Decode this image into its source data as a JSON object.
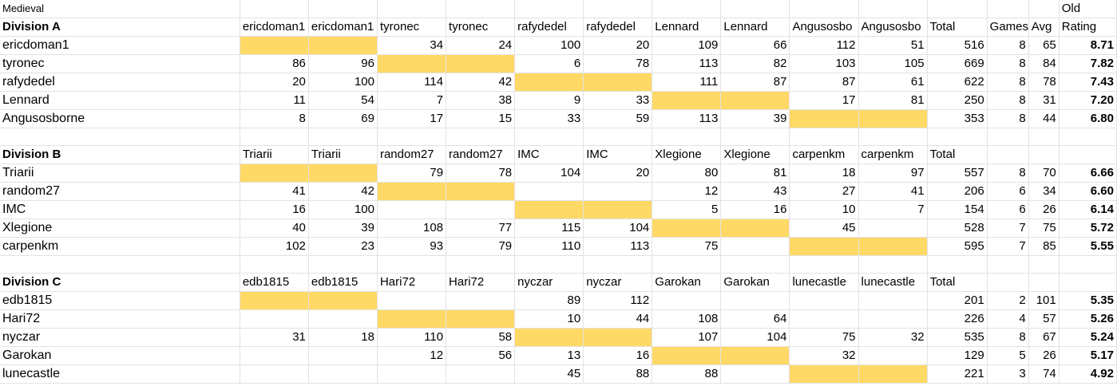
{
  "sheet": {
    "title": "Medieval",
    "old_label": "Old",
    "divisions": [
      {
        "name": "Division A",
        "opponents": [
          "ericdoman1",
          "ericdoman1",
          "tyronec",
          "tyronec",
          "rafydedel",
          "rafydedel",
          "Lennard",
          "Lennard",
          "Angusosbo",
          "Angusosbo"
        ],
        "total_label": "Total",
        "games_label": "Games",
        "avg_label": "Avg",
        "rating_label": "Rating",
        "rows": [
          {
            "name": "ericdoman1",
            "cells": [
              "",
              "",
              "34",
              "24",
              "100",
              "20",
              "109",
              "66",
              "112",
              "51"
            ],
            "total": "516",
            "games": "8",
            "avg": "65",
            "rating": "8.71",
            "hl": [
              0
            ]
          },
          {
            "name": "tyronec",
            "cells": [
              "86",
              "96",
              "",
              "",
              "6",
              "78",
              "113",
              "82",
              "103",
              "105"
            ],
            "total": "669",
            "games": "8",
            "avg": "84",
            "rating": "7.82",
            "hl": [
              1
            ]
          },
          {
            "name": "rafydedel",
            "cells": [
              "20",
              "100",
              "114",
              "42",
              "",
              "",
              "111",
              "87",
              "87",
              "61"
            ],
            "total": "622",
            "games": "8",
            "avg": "78",
            "rating": "7.43",
            "hl": [
              2
            ]
          },
          {
            "name": "Lennard",
            "cells": [
              "11",
              "54",
              "7",
              "38",
              "9",
              "33",
              "",
              "",
              "17",
              "81"
            ],
            "total": "250",
            "games": "8",
            "avg": "31",
            "rating": "7.20",
            "hl": [
              3
            ]
          },
          {
            "name": "Angusosborne",
            "cells": [
              "8",
              "69",
              "17",
              "15",
              "33",
              "59",
              "113",
              "39",
              "",
              ""
            ],
            "total": "353",
            "games": "8",
            "avg": "44",
            "rating": "6.80",
            "hl": [
              4
            ]
          }
        ]
      },
      {
        "name": "Division B",
        "opponents": [
          "Triarii",
          "Triarii",
          "random27",
          "random27",
          "IMC",
          "IMC",
          "Xlegione",
          "Xlegione",
          "carpenkm",
          "carpenkm"
        ],
        "total_label": "Total",
        "games_label": "",
        "avg_label": "",
        "rating_label": "",
        "rows": [
          {
            "name": "Triarii",
            "cells": [
              "",
              "",
              "79",
              "78",
              "104",
              "20",
              "80",
              "81",
              "18",
              "97"
            ],
            "total": "557",
            "games": "8",
            "avg": "70",
            "rating": "6.66",
            "hl": [
              0
            ]
          },
          {
            "name": "random27",
            "cells": [
              "41",
              "42",
              "",
              "",
              "",
              "",
              "12",
              "43",
              "27",
              "41"
            ],
            "total": "206",
            "games": "6",
            "avg": "34",
            "rating": "6.60",
            "hl": [
              1
            ]
          },
          {
            "name": "IMC",
            "cells": [
              "16",
              "100",
              "",
              "",
              "",
              "",
              "5",
              "16",
              "10",
              "7"
            ],
            "total": "154",
            "games": "6",
            "avg": "26",
            "rating": "6.14",
            "hl": [
              2
            ]
          },
          {
            "name": "Xlegione",
            "cells": [
              "40",
              "39",
              "108",
              "77",
              "115",
              "104",
              "",
              "",
              "45",
              ""
            ],
            "total": "528",
            "games": "7",
            "avg": "75",
            "rating": "5.72",
            "hl": [
              3
            ]
          },
          {
            "name": "carpenkm",
            "cells": [
              "102",
              "23",
              "93",
              "79",
              "110",
              "113",
              "75",
              "",
              "",
              ""
            ],
            "total": "595",
            "games": "7",
            "avg": "85",
            "rating": "5.55",
            "hl": [
              4
            ]
          }
        ]
      },
      {
        "name": "Division C",
        "opponents": [
          "edb1815",
          "edb1815",
          "Hari72",
          "Hari72",
          "nyczar",
          "nyczar",
          "Garokan",
          "Garokan",
          "lunecastle",
          "lunecastle"
        ],
        "total_label": "Total",
        "games_label": "",
        "avg_label": "",
        "rating_label": "",
        "rows": [
          {
            "name": "edb1815",
            "cells": [
              "",
              "",
              "",
              "",
              "89",
              "112",
              "",
              "",
              "",
              ""
            ],
            "total": "201",
            "games": "2",
            "avg": "101",
            "rating": "5.35",
            "hl": [
              0
            ]
          },
          {
            "name": "Hari72",
            "cells": [
              "",
              "",
              "",
              "",
              "10",
              "44",
              "108",
              "64",
              "",
              ""
            ],
            "total": "226",
            "games": "4",
            "avg": "57",
            "rating": "5.26",
            "hl": [
              1
            ]
          },
          {
            "name": "nyczar",
            "cells": [
              "31",
              "18",
              "110",
              "58",
              "",
              "",
              "107",
              "104",
              "75",
              "32"
            ],
            "total": "535",
            "games": "8",
            "avg": "67",
            "rating": "5.24",
            "hl": [
              2
            ]
          },
          {
            "name": "Garokan",
            "cells": [
              "",
              "",
              "12",
              "56",
              "13",
              "16",
              "",
              "",
              "32",
              ""
            ],
            "total": "129",
            "games": "5",
            "avg": "26",
            "rating": "5.17",
            "hl": [
              3
            ]
          },
          {
            "name": "lunecastle",
            "cells": [
              "",
              "",
              "",
              "",
              "45",
              "88",
              "88",
              "",
              "",
              ""
            ],
            "total": "221",
            "games": "3",
            "avg": "74",
            "rating": "4.92",
            "hl": [
              4
            ]
          }
        ]
      }
    ]
  }
}
